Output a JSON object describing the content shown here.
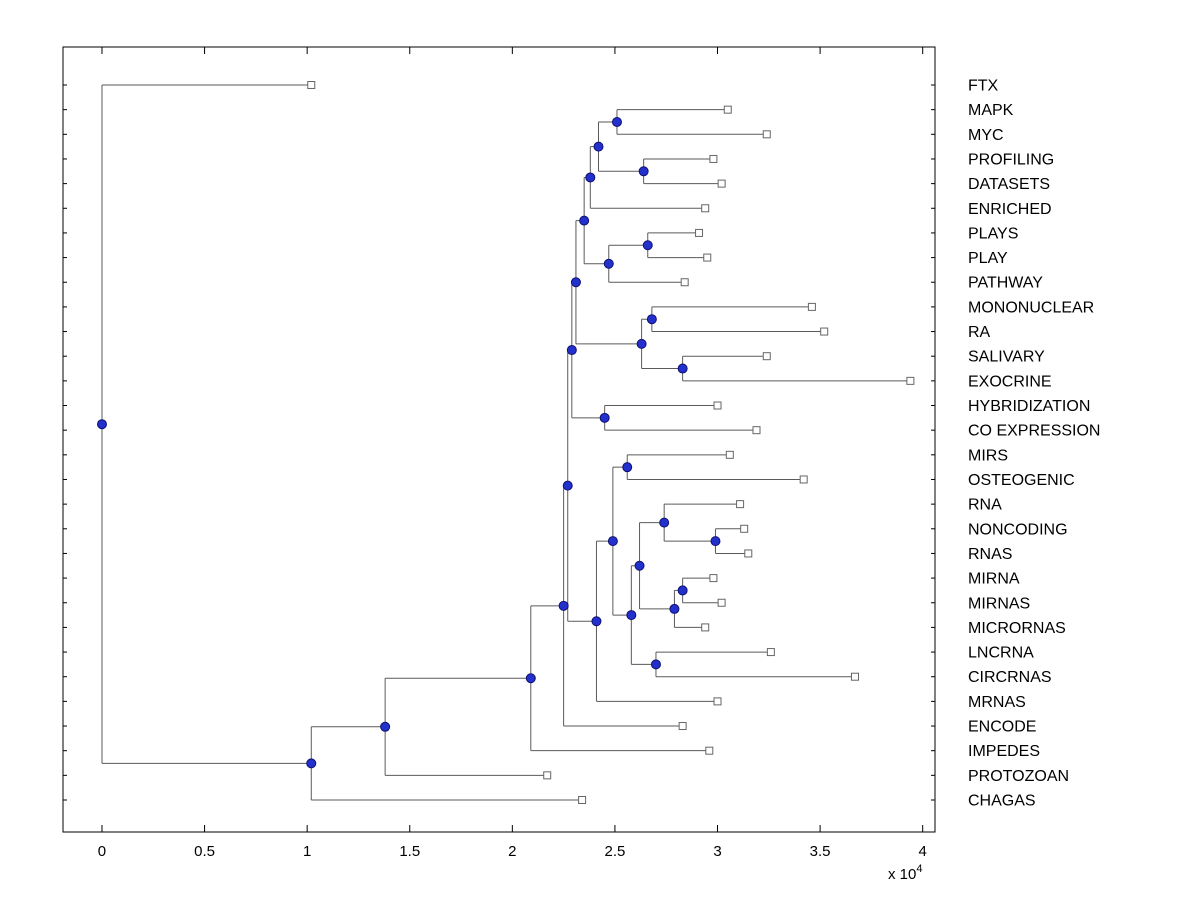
{
  "figure": {
    "background": "#FFFFFF"
  },
  "colors": {
    "axis_box": "#000000",
    "branch_line": "#5a5a5a",
    "branch_marker_fill": "#2230cc",
    "branch_marker_edge": "#101070",
    "leaf_marker_fill": "#ffffff",
    "leaf_marker_edge": "#666666",
    "text": "#000000"
  },
  "chart_data": {
    "type": "dendrogram",
    "subtype": "phylogenetic-tree",
    "orientation": "left-to-right",
    "title": "",
    "xlabel": "",
    "ylabel": "",
    "unit_scale": 10000,
    "offset_label": {
      "base": "x 10",
      "exponent": "4"
    },
    "xlim": [
      -0.19,
      4.06
    ],
    "x_ticks": [
      0,
      0.5,
      1,
      1.5,
      2,
      2.5,
      3,
      3.5,
      4
    ],
    "x_tick_labels": [
      "0",
      "0.5",
      "1",
      "1.5",
      "2",
      "2.5",
      "3",
      "3.5",
      "4"
    ],
    "grid": false,
    "legend": false,
    "leaf_labels": [
      "FTX",
      "MAPK",
      "MYC",
      "PROFILING",
      "DATASETS",
      "ENRICHED",
      "PLAYS",
      "PLAY",
      "PATHWAY",
      "MONONUCLEAR",
      "RA",
      "SALIVARY",
      "EXOCRINE",
      "HYBRIDIZATION",
      "CO EXPRESSION",
      "MIRS",
      "OSTEOGENIC",
      "RNA",
      "NONCODING",
      "RNAS",
      "MIRNA",
      "MIRNAS",
      "MICRORNAS",
      "LNCRNA",
      "CIRCRNAS",
      "MRNAS",
      "ENCODE",
      "IMPEDES",
      "PROTOZOAN",
      "CHAGAS"
    ],
    "leaf_tip_values": [
      1.02,
      3.05,
      3.24,
      2.98,
      3.02,
      2.94,
      2.91,
      2.95,
      2.84,
      3.46,
      3.52,
      3.24,
      3.94,
      3.0,
      3.19,
      3.06,
      3.42,
      3.11,
      3.13,
      3.15,
      2.98,
      3.02,
      2.94,
      3.26,
      3.67,
      3.0,
      2.83,
      2.96,
      2.17,
      2.34
    ],
    "tree": {
      "h": 0.0,
      "children": [
        {
          "name": "FTX",
          "tip": 1.02
        },
        {
          "h": 1.02,
          "children": [
            {
              "h": 1.38,
              "children": [
                {
                  "h": 2.09,
                  "children": [
                    {
                      "h": 2.25,
                      "children": [
                        {
                          "h": 2.27,
                          "children": [
                            {
                              "h": 2.29,
                              "children": [
                                {
                                  "h": 2.31,
                                  "children": [
                                    {
                                      "h": 2.35,
                                      "children": [
                                        {
                                          "h": 2.38,
                                          "children": [
                                            {
                                              "h": 2.42,
                                              "children": [
                                                {
                                                  "h": 2.51,
                                                  "children": [
                                                    {
                                                      "name": "MAPK",
                                                      "tip": 3.05
                                                    },
                                                    {
                                                      "name": "MYC",
                                                      "tip": 3.24
                                                    }
                                                  ]
                                                },
                                                {
                                                  "h": 2.64,
                                                  "children": [
                                                    {
                                                      "name": "PROFILING",
                                                      "tip": 2.98
                                                    },
                                                    {
                                                      "name": "DATASETS",
                                                      "tip": 3.02
                                                    }
                                                  ]
                                                }
                                              ]
                                            },
                                            {
                                              "name": "ENRICHED",
                                              "tip": 2.94
                                            }
                                          ]
                                        },
                                        {
                                          "h": 2.47,
                                          "children": [
                                            {
                                              "h": 2.66,
                                              "children": [
                                                {
                                                  "name": "PLAYS",
                                                  "tip": 2.91
                                                },
                                                {
                                                  "name": "PLAY",
                                                  "tip": 2.95
                                                }
                                              ]
                                            },
                                            {
                                              "name": "PATHWAY",
                                              "tip": 2.84
                                            }
                                          ]
                                        }
                                      ]
                                    },
                                    {
                                      "h": 2.63,
                                      "children": [
                                        {
                                          "h": 2.68,
                                          "children": [
                                            {
                                              "name": "MONONUCLEAR",
                                              "tip": 3.46
                                            },
                                            {
                                              "name": "RA",
                                              "tip": 3.52
                                            }
                                          ]
                                        },
                                        {
                                          "h": 2.83,
                                          "children": [
                                            {
                                              "name": "SALIVARY",
                                              "tip": 3.24
                                            },
                                            {
                                              "name": "EXOCRINE",
                                              "tip": 3.94
                                            }
                                          ]
                                        }
                                      ]
                                    }
                                  ]
                                },
                                {
                                  "h": 2.45,
                                  "children": [
                                    {
                                      "name": "HYBRIDIZATION",
                                      "tip": 3.0
                                    },
                                    {
                                      "name": "CO EXPRESSION",
                                      "tip": 3.19
                                    }
                                  ]
                                }
                              ]
                            },
                            {
                              "h": 2.41,
                              "children": [
                                {
                                  "h": 2.49,
                                  "children": [
                                    {
                                      "h": 2.56,
                                      "children": [
                                        {
                                          "name": "MIRS",
                                          "tip": 3.06
                                        },
                                        {
                                          "name": "OSTEOGENIC",
                                          "tip": 3.42
                                        }
                                      ]
                                    },
                                    {
                                      "h": 2.58,
                                      "children": [
                                        {
                                          "h": 2.62,
                                          "children": [
                                            {
                                              "h": 2.74,
                                              "children": [
                                                {
                                                  "name": "RNA",
                                                  "tip": 3.11
                                                },
                                                {
                                                  "h": 2.99,
                                                  "children": [
                                                    {
                                                      "name": "NONCODING",
                                                      "tip": 3.13
                                                    },
                                                    {
                                                      "name": "RNAS",
                                                      "tip": 3.15
                                                    }
                                                  ]
                                                }
                                              ]
                                            },
                                            {
                                              "h": 2.79,
                                              "children": [
                                                {
                                                  "h": 2.83,
                                                  "children": [
                                                    {
                                                      "name": "MIRNA",
                                                      "tip": 2.98
                                                    },
                                                    {
                                                      "name": "MIRNAS",
                                                      "tip": 3.02
                                                    }
                                                  ]
                                                },
                                                {
                                                  "name": "MICRORNAS",
                                                  "tip": 2.94
                                                }
                                              ]
                                            }
                                          ]
                                        },
                                        {
                                          "h": 2.7,
                                          "children": [
                                            {
                                              "name": "LNCRNA",
                                              "tip": 3.26
                                            },
                                            {
                                              "name": "CIRCRNAS",
                                              "tip": 3.67
                                            }
                                          ]
                                        }
                                      ]
                                    }
                                  ]
                                },
                                {
                                  "name": "MRNAS",
                                  "tip": 3.0
                                }
                              ]
                            }
                          ]
                        },
                        {
                          "name": "ENCODE",
                          "tip": 2.83
                        }
                      ]
                    },
                    {
                      "name": "IMPEDES",
                      "tip": 2.96
                    }
                  ]
                },
                {
                  "name": "PROTOZOAN",
                  "tip": 2.17
                }
              ]
            },
            {
              "name": "CHAGAS",
              "tip": 2.34
            }
          ]
        }
      ]
    }
  }
}
